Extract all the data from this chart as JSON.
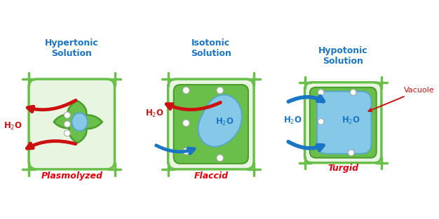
{
  "background_color": "#ffffff",
  "solutions": [
    "Hypertonic\nSolution",
    "Isotonic\nSolution",
    "Hypotonic\nSolution"
  ],
  "labels": [
    "Plasmolyzed",
    "Flaccid",
    "Turgid"
  ],
  "label_color": "#e8000d",
  "title_color": "#1a75c4",
  "cell_wall_color": "#6abf4b",
  "cell_wall_edge": "#4a9e2b",
  "vacuole_color": "#85c8e8",
  "vacuole_edge": "#5aa8c3",
  "cytoplasm_light": "#e8f5e0",
  "cytoplasm_green": "#6abf4b",
  "arrow_red": "#cc1111",
  "arrow_blue": "#1a75c4",
  "h2o_out_color": "#cc1111",
  "h2o_in_color": "#1a75c4"
}
